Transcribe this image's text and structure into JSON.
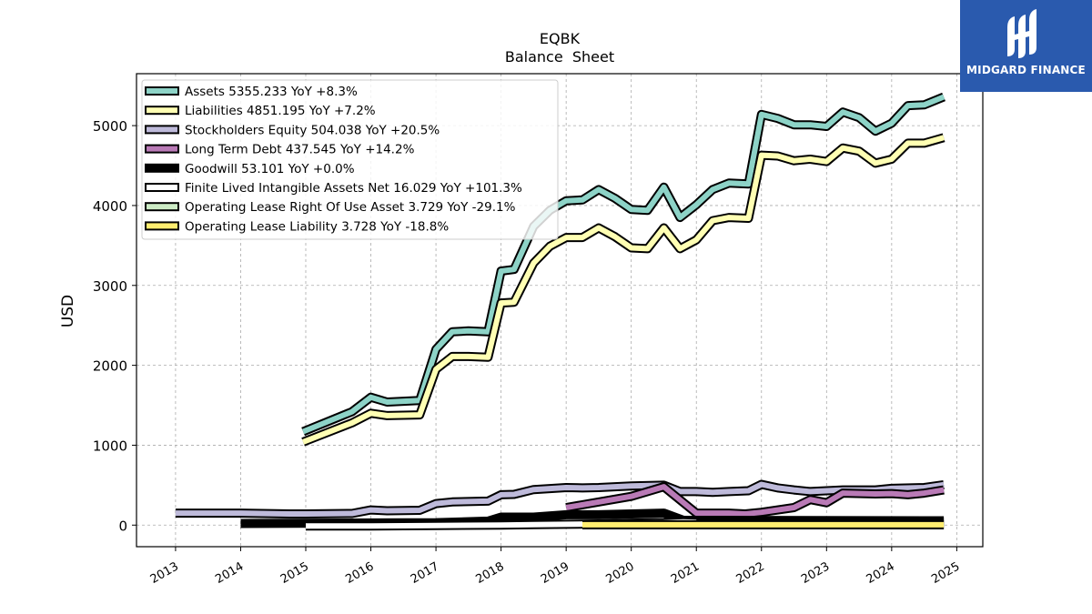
{
  "brand": {
    "name": "MIDGARD FINANCE",
    "color": "#2a5aae"
  },
  "chart_data": {
    "type": "line",
    "title": "EQBK",
    "subtitle": "Balance  Sheet",
    "ylabel": "USD",
    "xlabel": "",
    "ylim": [
      -270,
      5650
    ],
    "xlim": [
      2012.4,
      2025.4
    ],
    "yticks": [
      0,
      1000,
      2000,
      3000,
      4000,
      5000
    ],
    "xticks": [
      2013,
      2014,
      2015,
      2016,
      2017,
      2018,
      2019,
      2020,
      2021,
      2022,
      2023,
      2024,
      2025
    ],
    "grid": true,
    "legend_position": "top-left",
    "series": [
      {
        "name": "Assets  5355.233 YoY +8.3%",
        "color": "#8dd3c7",
        "x": [
          2014.96,
          2015.71,
          2016.0,
          2016.25,
          2016.75,
          2017.0,
          2017.25,
          2017.5,
          2017.8,
          2018.0,
          2018.2,
          2018.5,
          2018.75,
          2019.0,
          2019.25,
          2019.5,
          2019.75,
          2020.0,
          2020.25,
          2020.5,
          2020.75,
          2021.0,
          2021.25,
          2021.5,
          2021.8,
          2022.0,
          2022.25,
          2022.5,
          2022.75,
          2023.0,
          2023.25,
          2023.5,
          2023.75,
          2024.0,
          2024.25,
          2024.5,
          2024.8
        ],
        "y": [
          1170,
          1420,
          1600,
          1540,
          1560,
          2200,
          2420,
          2430,
          2420,
          3180,
          3200,
          3740,
          3940,
          4060,
          4070,
          4200,
          4090,
          3950,
          3940,
          4230,
          3850,
          4010,
          4200,
          4280,
          4270,
          5140,
          5090,
          5010,
          5010,
          4990,
          5170,
          5100,
          4930,
          5030,
          5250,
          5260,
          5360
        ]
      },
      {
        "name": "Liabilities  4851.195 YoY +7.2%",
        "color": "#ffffb3",
        "x": [
          2014.96,
          2015.71,
          2016.0,
          2016.25,
          2016.75,
          2017.0,
          2017.25,
          2017.5,
          2017.8,
          2018.0,
          2018.2,
          2018.5,
          2018.75,
          2019.0,
          2019.25,
          2019.5,
          2019.75,
          2020.0,
          2020.25,
          2020.5,
          2020.75,
          2021.0,
          2021.25,
          2021.5,
          2021.8,
          2022.0,
          2022.25,
          2022.5,
          2022.75,
          2023.0,
          2023.25,
          2023.5,
          2023.75,
          2024.0,
          2024.25,
          2024.5,
          2024.8
        ],
        "y": [
          1040,
          1280,
          1400,
          1370,
          1380,
          1950,
          2110,
          2110,
          2100,
          2780,
          2790,
          3280,
          3490,
          3600,
          3600,
          3720,
          3610,
          3470,
          3460,
          3720,
          3460,
          3570,
          3810,
          3850,
          3840,
          4630,
          4620,
          4560,
          4580,
          4550,
          4720,
          4680,
          4530,
          4580,
          4780,
          4780,
          4850
        ]
      },
      {
        "name": "Stockholders Equity  504.038 YoY +20.5%",
        "color": "#bebada",
        "x": [
          2013.0,
          2014.0,
          2014.75,
          2015.0,
          2015.71,
          2016.0,
          2016.25,
          2016.75,
          2017.0,
          2017.25,
          2017.8,
          2018.0,
          2018.2,
          2018.5,
          2019.0,
          2019.25,
          2019.5,
          2020.0,
          2020.5,
          2020.75,
          2021.0,
          2021.25,
          2021.5,
          2021.8,
          2022.0,
          2022.25,
          2022.5,
          2022.75,
          2023.0,
          2023.25,
          2023.5,
          2023.75,
          2024.0,
          2024.5,
          2024.8
        ],
        "y": [
          150,
          150,
          140,
          140,
          145,
          190,
          180,
          185,
          270,
          290,
          300,
          380,
          385,
          445,
          470,
          465,
          470,
          490,
          500,
          420,
          420,
          410,
          420,
          430,
          510,
          465,
          440,
          420,
          430,
          440,
          440,
          440,
          460,
          470,
          505
        ]
      },
      {
        "name": "Long Term Debt  437.545 YoY +14.2%",
        "color": "#b97ab6",
        "x": [
          2019.0,
          2020.0,
          2020.5,
          2021.0,
          2021.5,
          2021.75,
          2022.0,
          2022.5,
          2022.75,
          2023.0,
          2023.25,
          2023.75,
          2024.0,
          2024.25,
          2024.5,
          2024.8
        ],
        "y": [
          220,
          360,
          480,
          150,
          150,
          140,
          160,
          220,
          320,
          280,
          400,
          390,
          395,
          380,
          400,
          440
        ]
      },
      {
        "name": "Goodwill  53.101 YoY +0.0%",
        "color": "#000000",
        "x": [
          2014.0,
          2017.0,
          2017.8,
          2018.0,
          2018.5,
          2019.0,
          2019.5,
          2020.0,
          2020.5,
          2020.8,
          2021.0,
          2024.8
        ],
        "y": [
          20,
          30,
          50,
          100,
          100,
          130,
          130,
          140,
          150,
          60,
          60,
          55
        ]
      },
      {
        "name": "Finite Lived Intangible Assets Net  16.029 YoY +101.3%",
        "color": "#ffffff",
        "x": [
          2015.0,
          2016.0,
          2017.0,
          2018.0,
          2018.5,
          2019.0,
          2019.5,
          2020.0,
          2020.5,
          2020.8,
          2021.0
        ],
        "y": [
          -10,
          -10,
          -5,
          0,
          5,
          10,
          15,
          25,
          30,
          40,
          35
        ]
      },
      {
        "name": "Operating Lease Right Of Use Asset  3.729 YoY -29.1%",
        "color": "#ccebc5",
        "x": [
          2019.25,
          2024.8
        ],
        "y": [
          4,
          4
        ]
      },
      {
        "name": "Operating Lease Liability  3.728 YoY -18.8%",
        "color": "#ffed6f",
        "x": [
          2019.25,
          2024.8
        ],
        "y": [
          4,
          4
        ]
      }
    ]
  }
}
